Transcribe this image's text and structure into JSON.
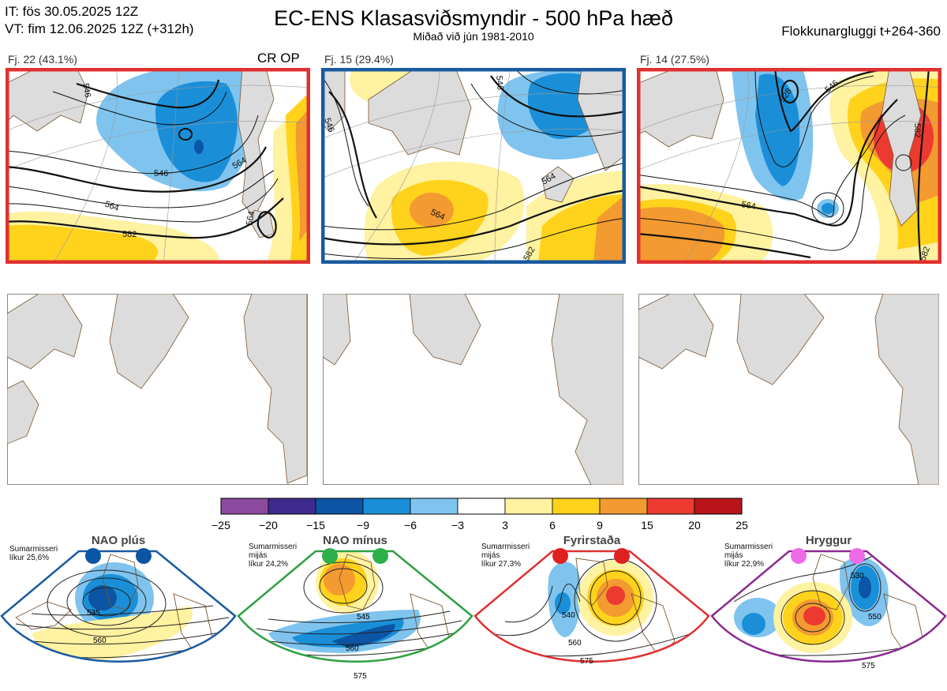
{
  "header": {
    "issue_time": "IT: fös 30.05.2025 12Z",
    "valid_time": "VT: fim 12.06.2025 12Z  (+312h)",
    "title": "EC-ENS Klasasviðsmyndir - 500 hPa hæð",
    "subtitle": "Miðað við jún 1981-2010",
    "window": "Flokkunargluggi t+264-360"
  },
  "clusters": [
    {
      "label": "Fj. 22 (43.1%)",
      "member_count": 22,
      "percent": 43.1,
      "op_label": "CR OP",
      "frame_color": "#e03030",
      "contour_labels": [
        "546",
        "564",
        "582",
        "564",
        "546",
        "564"
      ]
    },
    {
      "label": "Fj. 15 (29.4%)",
      "member_count": 15,
      "percent": 29.4,
      "op_label": "",
      "frame_color": "#1a5aa0",
      "contour_labels": [
        "546",
        "564",
        "582",
        "546",
        "564"
      ]
    },
    {
      "label": "Fj. 14 (27.5%)",
      "member_count": 14,
      "percent": 27.5,
      "op_label": "",
      "frame_color": "#e03030",
      "contour_labels": [
        "546",
        "564",
        "582",
        "528",
        "582"
      ]
    }
  ],
  "colorbar": {
    "ticks": [
      "−25",
      "−20",
      "−15",
      "−9",
      "−6",
      "−3",
      "3",
      "6",
      "9",
      "15",
      "20",
      "25"
    ],
    "colors": [
      "#8b4a9e",
      "#3f2a8e",
      "#0b55a4",
      "#1a8fd8",
      "#7fc4ee",
      "#ffffff",
      "#fff2a0",
      "#ffd21c",
      "#f39a30",
      "#ec3a30",
      "#b8141a"
    ]
  },
  "regimes": [
    {
      "title": "NAO plús",
      "line1": "Sumarmisseri",
      "line2": "",
      "line3": "líkur 25,6%",
      "dot_color": "#0b55a4",
      "frame_color": "#1a5aa0",
      "contour_labels": [
        "535",
        "560"
      ]
    },
    {
      "title": "NAO mínus",
      "line1": "Sumarmisseri",
      "line2": "mijás",
      "line3": "líkur 24,2%",
      "dot_color": "#2db04a",
      "frame_color": "#2fa040",
      "contour_labels": [
        "545",
        "560",
        "575"
      ]
    },
    {
      "title": "Fyrirstaða",
      "line1": "Sumarmisseri",
      "line2": "mijás",
      "line3": "líkur 27,3%",
      "dot_color": "#e02020",
      "frame_color": "#e03030",
      "contour_labels": [
        "540",
        "560",
        "575"
      ]
    },
    {
      "title": "Hryggur",
      "line1": "Sumarmisseri",
      "line2": "mijás",
      "line3": "líkur 22,9%",
      "dot_color": "#ee6be8",
      "frame_color": "#8a2a90",
      "contour_labels": [
        "530",
        "550",
        "575"
      ]
    }
  ]
}
